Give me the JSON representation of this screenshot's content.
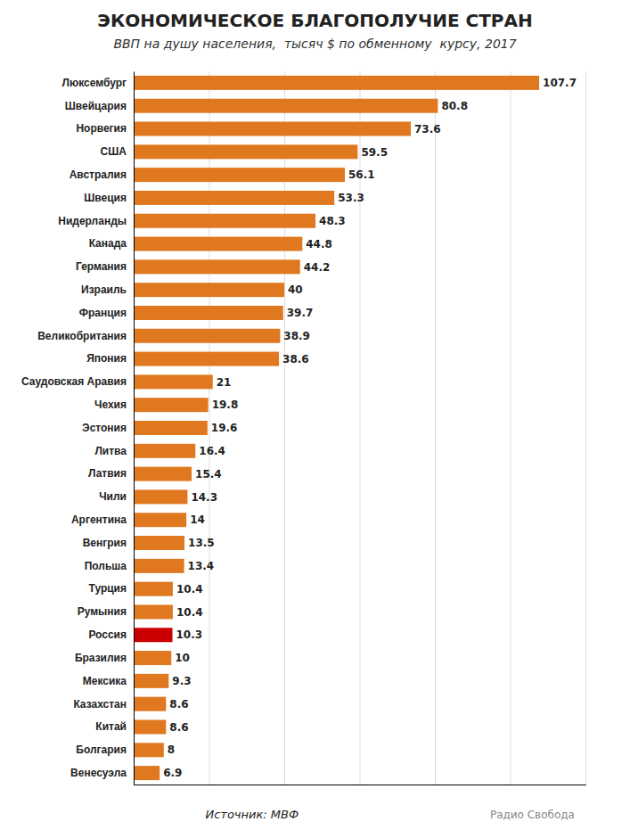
{
  "chart_data": {
    "type": "bar",
    "orientation": "horizontal",
    "title": "ЭКОНОМИЧЕСКОЕ БЛАГОПОЛУЧИЕ СТРАН",
    "subtitle": "ВВП на душу населения,  тысяч $ по обменному  курсу, 2017",
    "annotations": [
      "Источник: МВФ",
      "Радио Свобода"
    ],
    "categories": [
      "Люксембург",
      "Швейцария",
      "Норвегия",
      "США",
      "Австралия",
      "Швеция",
      "Нидерланды",
      "Канада",
      "Германия",
      "Израиль",
      "Франция",
      "Великобритания",
      "Япония",
      "Саудовская Аравия",
      "Чехия",
      "Эстония",
      "Литва",
      "Латвия",
      "Чили",
      "Аргентина",
      "Венгрия",
      "Польша",
      "Турция",
      "Румыния",
      "Россия",
      "Бразилия",
      "Мексика",
      "Казахстан",
      "Китай",
      "Болгария",
      "Венесуэла"
    ],
    "values": [
      107.7,
      80.8,
      73.6,
      59.5,
      56.1,
      53.3,
      48.3,
      44.8,
      44.2,
      40,
      39.7,
      38.9,
      38.6,
      21,
      19.8,
      19.6,
      16.4,
      15.4,
      14.3,
      14,
      13.5,
      13.4,
      10.4,
      10.4,
      10.3,
      10,
      9.3,
      8.6,
      8.6,
      8,
      6.9
    ],
    "colors": [
      "#e07820",
      "#e07820",
      "#e07820",
      "#e07820",
      "#e07820",
      "#e07820",
      "#e07820",
      "#e07820",
      "#e07820",
      "#e07820",
      "#e07820",
      "#e07820",
      "#e07820",
      "#e07820",
      "#e07820",
      "#e07820",
      "#e07820",
      "#e07820",
      "#e07820",
      "#e07820",
      "#e07820",
      "#e07820",
      "#e07820",
      "#e07820",
      "#cc0000",
      "#e07820",
      "#e07820",
      "#e07820",
      "#e07820",
      "#e07820",
      "#e07820"
    ],
    "xlim": [
      0,
      120
    ],
    "xticks": [
      0,
      20,
      40,
      60,
      80,
      100,
      120
    ],
    "grid": true,
    "data_labels": true,
    "tick_labels": "y"
  }
}
